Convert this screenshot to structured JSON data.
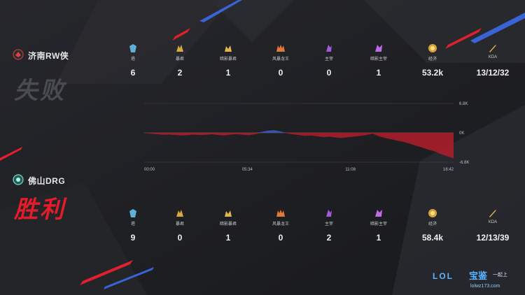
{
  "teams": [
    {
      "name": "济南RW侠",
      "result": "失败",
      "stats": [
        {
          "label": "塔",
          "value": "6",
          "icon": "tower-icon"
        },
        {
          "label": "暴君",
          "value": "2",
          "icon": "tyrant-icon"
        },
        {
          "label": "暗影暴君",
          "value": "1",
          "icon": "shadow-tyrant-icon"
        },
        {
          "label": "风暴龙王",
          "value": "0",
          "icon": "storm-dragon-icon"
        },
        {
          "label": "主宰",
          "value": "0",
          "icon": "overlord-icon"
        },
        {
          "label": "暗影主宰",
          "value": "1",
          "icon": "shadow-overlord-icon"
        },
        {
          "label": "经济",
          "value": "53.2k",
          "icon": "gold-icon"
        },
        {
          "label": "KDA",
          "value": "13/12/32",
          "icon": "kda-sword-icon"
        }
      ]
    },
    {
      "name": "佛山DRG",
      "result": "胜利",
      "stats": [
        {
          "label": "塔",
          "value": "9",
          "icon": "tower-icon"
        },
        {
          "label": "暴君",
          "value": "0",
          "icon": "tyrant-icon"
        },
        {
          "label": "暗影暴君",
          "value": "1",
          "icon": "shadow-tyrant-icon"
        },
        {
          "label": "风暴龙王",
          "value": "0",
          "icon": "storm-dragon-icon"
        },
        {
          "label": "主宰",
          "value": "2",
          "icon": "overlord-icon"
        },
        {
          "label": "暗影主宰",
          "value": "1",
          "icon": "shadow-overlord-icon"
        },
        {
          "label": "经济",
          "value": "58.4k",
          "icon": "gold-icon"
        },
        {
          "label": "KDA",
          "value": "12/13/39",
          "icon": "kda-sword-icon"
        }
      ]
    }
  ],
  "chart_data": {
    "type": "area",
    "x_ticks": [
      "00:00",
      "05:34",
      "11:08",
      "16:42"
    ],
    "y_ticks": [
      "6.8K",
      "0K",
      "-6.8K"
    ],
    "ylim": [
      -6800,
      6800
    ],
    "xlim_seconds": [
      0,
      1002
    ],
    "positive_color": "#3b5bb8",
    "negative_color": "#b21d2c",
    "series": [
      {
        "x": [
          0,
          20,
          40,
          60,
          80,
          100,
          120,
          140,
          160,
          180,
          200,
          220,
          240,
          260,
          280,
          300,
          320,
          340,
          360,
          380,
          400,
          420,
          440,
          460,
          480,
          500,
          520,
          540,
          560,
          580,
          600,
          620,
          640,
          660,
          680,
          700,
          720,
          740,
          760,
          780,
          800,
          820,
          840,
          860,
          880,
          900,
          920,
          940,
          960,
          980,
          1002
        ],
        "values": [
          0,
          -200,
          -300,
          -450,
          -400,
          -500,
          -600,
          -550,
          -400,
          -500,
          -450,
          -350,
          -500,
          -600,
          -400,
          -300,
          -450,
          -550,
          -300,
          200,
          500,
          600,
          350,
          -100,
          -350,
          -500,
          -700,
          -600,
          -800,
          -1000,
          -900,
          -1100,
          -1200,
          -1000,
          -900,
          -700,
          -500,
          -200,
          -800,
          -1200,
          -1500,
          -1800,
          -2100,
          -2500,
          -3000,
          -3400,
          -3900,
          -4300,
          -4900,
          -5400,
          -5900
        ]
      }
    ]
  },
  "brand": {
    "lol": "LOL",
    "cn": "宝鉴",
    "slogan": "一起上",
    "url": "lolwz173.com"
  }
}
